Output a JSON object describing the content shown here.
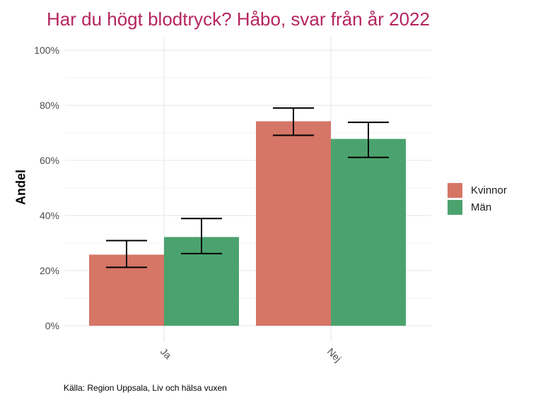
{
  "title": "Har du högt blodtryck? Håbo, svar från år 2022",
  "caption": "Källa: Region Uppsala, Liv och hälsa vuxen",
  "colors": {
    "title": "#b5245f",
    "Kvinnor": "#d57667",
    "Män": "#4ba26e"
  },
  "chart_data": {
    "type": "bar",
    "title": "Har du högt blodtryck? Håbo, svar från år 2022",
    "xlabel": "",
    "ylabel": "Andel",
    "categories": [
      "Ja",
      "Nej"
    ],
    "series": [
      {
        "name": "Kvinnor",
        "values": [
          25.8,
          74.2
        ],
        "error_low": [
          21.2,
          69.1
        ],
        "error_high": [
          30.9,
          79.0
        ]
      },
      {
        "name": "Män",
        "values": [
          32.2,
          67.8
        ],
        "error_low": [
          26.2,
          61.1
        ],
        "error_high": [
          38.9,
          73.8
        ]
      }
    ],
    "ylim": [
      0,
      100
    ],
    "yticks": [
      "0%",
      "20%",
      "40%",
      "60%",
      "80%",
      "100%"
    ],
    "grid": true,
    "legend_position": "right"
  }
}
